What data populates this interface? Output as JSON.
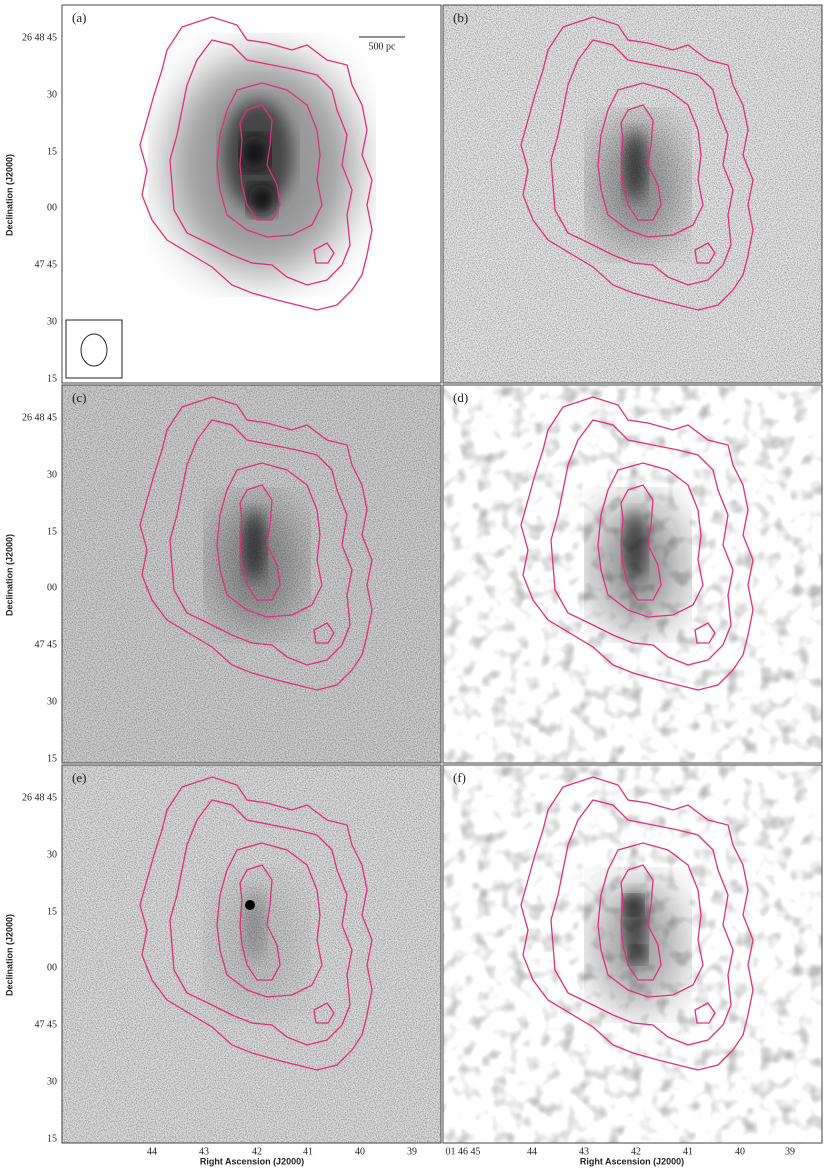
{
  "panels": [
    {
      "label": "(a)"
    },
    {
      "label": "(b)"
    },
    {
      "label": "(c)"
    },
    {
      "label": "(d)"
    },
    {
      "label": "(e)"
    },
    {
      "label": "(f)"
    }
  ],
  "scale_bar": "500 pc",
  "y_axis": {
    "title": "Declination (J2000)",
    "ticks": [
      "26 48 45",
      "30",
      "15",
      "00",
      "47 45",
      "30",
      "15"
    ]
  },
  "x_axis": {
    "title": "Right Ascension (J2000)",
    "left_ticks": [
      "44",
      "43",
      "42",
      "41",
      "40",
      "39"
    ],
    "right_ticks": [
      "01 46 45",
      "44",
      "43",
      "42",
      "41",
      "40",
      "39"
    ]
  }
}
